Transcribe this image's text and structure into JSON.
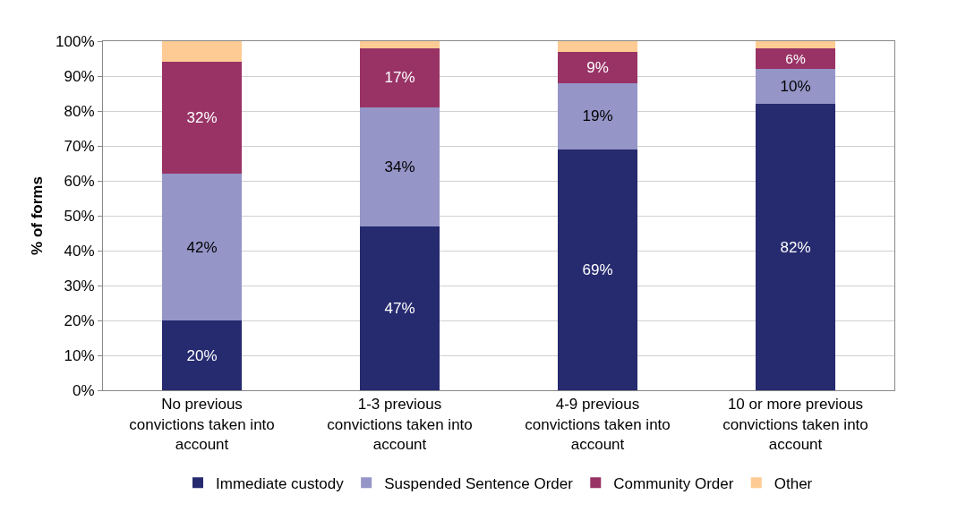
{
  "chart_data": {
    "type": "bar",
    "stacked": true,
    "ylabel": "% of forms",
    "categories": [
      "No previous convictions taken into account",
      "1-3 previous convictions taken into account",
      "4-9 previous convictions taken into account",
      "10 or more previous convictions taken into account"
    ],
    "series": [
      {
        "name": "Immediate custody",
        "color": "#262a6f",
        "values": [
          20,
          47,
          69,
          82
        ],
        "value_labels": [
          "20%",
          "47%",
          "69%",
          "82%"
        ]
      },
      {
        "name": "Suspended Sentence Order",
        "color": "#9595c8",
        "values": [
          42,
          34,
          19,
          10
        ],
        "value_labels": [
          "42%",
          "34%",
          "19%",
          "10%"
        ]
      },
      {
        "name": "Community Order",
        "color": "#993366",
        "values": [
          32,
          17,
          9,
          6
        ],
        "value_labels": [
          "32%",
          "17%",
          "9%",
          "6%"
        ]
      },
      {
        "name": "Other",
        "color": "#fdcb93",
        "values": [
          6,
          2,
          3,
          2
        ],
        "value_labels": [
          null,
          null,
          null,
          null
        ]
      }
    ],
    "ylim": [
      0,
      100
    ],
    "yticks": [
      {
        "value": 0,
        "label": "0%"
      },
      {
        "value": 10,
        "label": "10%"
      },
      {
        "value": 20,
        "label": "20%"
      },
      {
        "value": 30,
        "label": "30%"
      },
      {
        "value": 40,
        "label": "40%"
      },
      {
        "value": 50,
        "label": "50%"
      },
      {
        "value": 60,
        "label": "60%"
      },
      {
        "value": 70,
        "label": "70%"
      },
      {
        "value": 80,
        "label": "80%"
      },
      {
        "value": 90,
        "label": "90%"
      },
      {
        "value": 100,
        "label": "100%"
      }
    ],
    "grid": "y",
    "legend": "bottom"
  }
}
